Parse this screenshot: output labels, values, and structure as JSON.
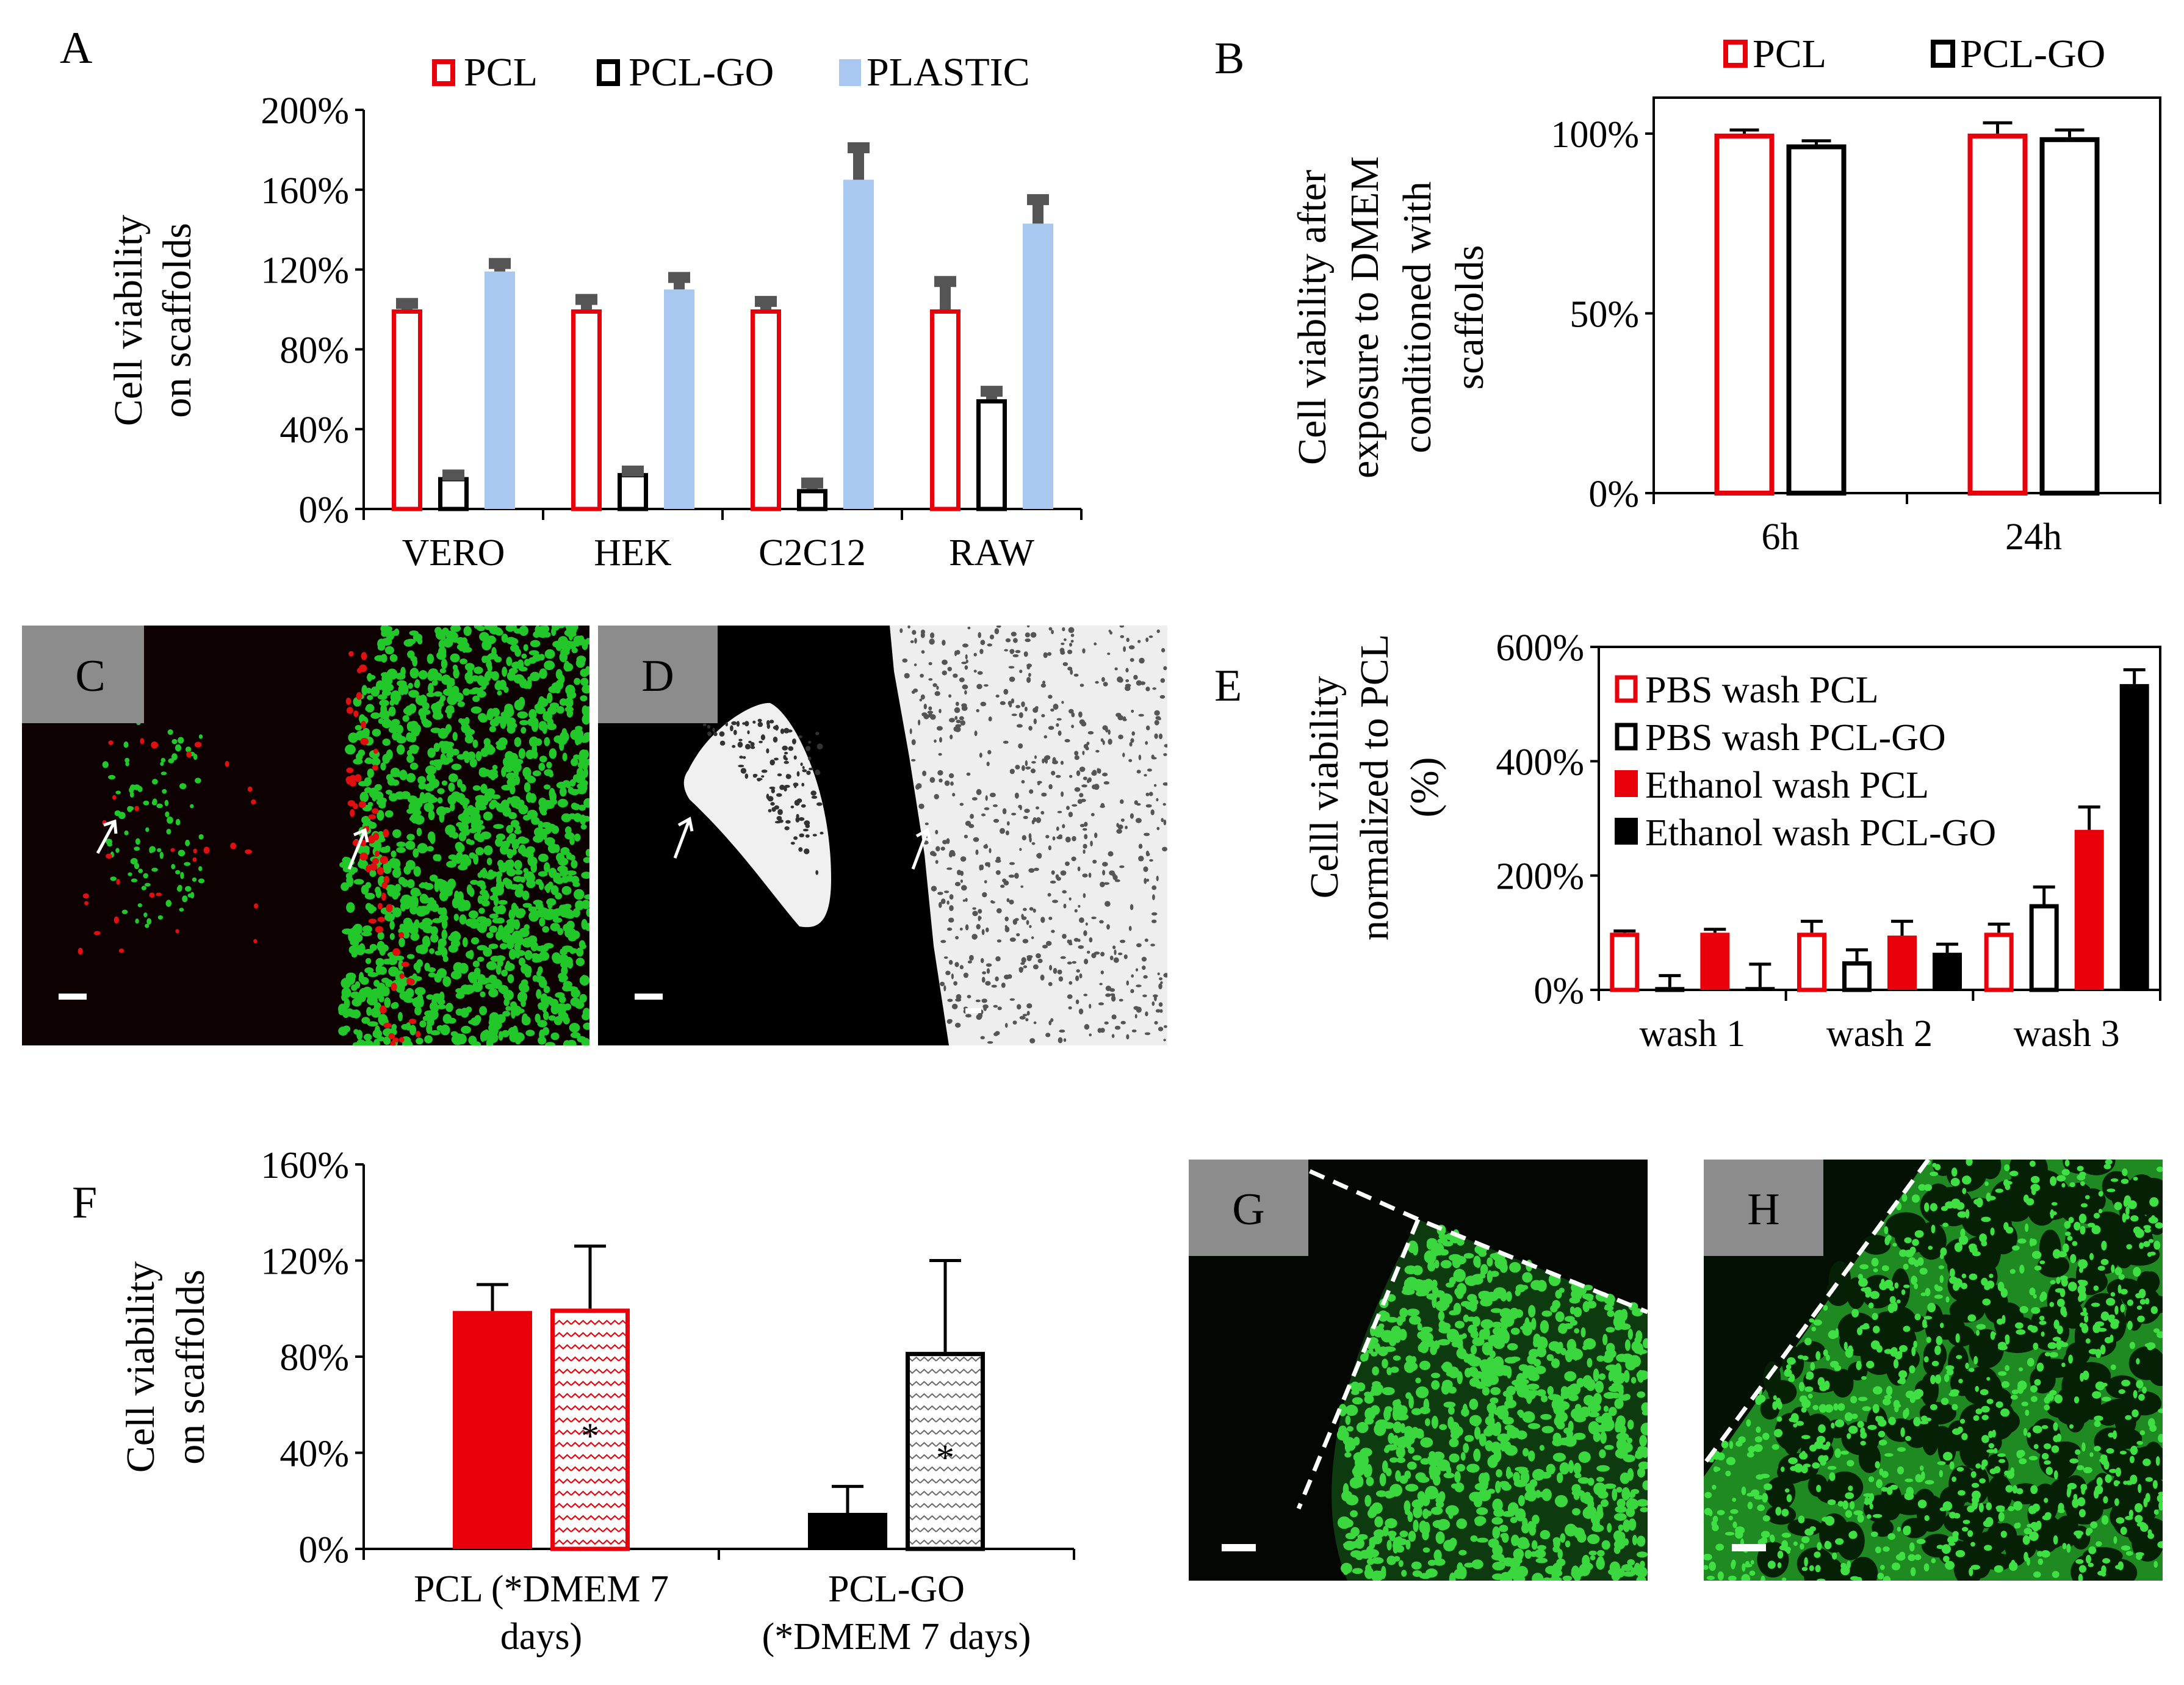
{
  "colors": {
    "pcl": "#e8000b",
    "pcl_go": "#000000",
    "plastic": "#a9c8ef",
    "error": "#555555",
    "micro_red": "#e01010",
    "micro_green": "#22c72a",
    "micro_gray": "#f2f2f2",
    "panel_label_bg": "#8c8c8c"
  },
  "panel_labels": {
    "A": "A",
    "B": "B",
    "C": "C",
    "D": "D",
    "E": "E",
    "F": "F",
    "G": "G",
    "H": "H"
  },
  "chart_data": [
    {
      "panel": "A",
      "type": "bar",
      "ylabel": [
        "Cell viability",
        "on scaffolds"
      ],
      "xlabel": "",
      "ylim": [
        0,
        200
      ],
      "yticks": [
        "0%",
        "40%",
        "80%",
        "120%",
        "160%",
        "200%"
      ],
      "categories": [
        "VERO",
        "HEK",
        "C2C12",
        "RAW"
      ],
      "legend": [
        "PCL",
        "PCL-GO",
        "PLASTIC"
      ],
      "legend_position": "top",
      "series": [
        {
          "name": "PCL",
          "style": "outline-red",
          "values": [
            100,
            100,
            100,
            100
          ],
          "errors": [
            3,
            5,
            4,
            14
          ]
        },
        {
          "name": "PCL-GO",
          "style": "outline-black",
          "values": [
            16,
            18,
            10,
            55
          ],
          "errors": [
            1,
            1,
            3,
            4
          ]
        },
        {
          "name": "PLASTIC",
          "style": "fill-blue",
          "values": [
            119,
            110,
            165,
            143
          ],
          "errors": [
            4,
            6,
            16,
            12
          ]
        }
      ]
    },
    {
      "panel": "B",
      "type": "bar",
      "ylabel": [
        "Cell viability after",
        "exposure to DMEM",
        "conditioned with",
        "scaffolds"
      ],
      "xlabel": "",
      "ylim": [
        0,
        110
      ],
      "yticks": [
        "0%",
        "50%",
        "100%"
      ],
      "categories": [
        "6h",
        "24h"
      ],
      "legend": [
        "PCL",
        "PCL-GO"
      ],
      "legend_position": "top",
      "series": [
        {
          "name": "PCL",
          "style": "outline-red",
          "values": [
            100,
            100
          ],
          "errors": [
            1,
            3
          ]
        },
        {
          "name": "PCL-GO",
          "style": "outline-black",
          "values": [
            97,
            99
          ],
          "errors": [
            1,
            2
          ]
        }
      ]
    },
    {
      "panel": "E",
      "type": "bar",
      "ylabel": [
        "Celll viability",
        "normalized to PCL",
        "(%)"
      ],
      "xlabel": "",
      "ylim": [
        0,
        600
      ],
      "yticks": [
        "0%",
        "200%",
        "400%",
        "600%"
      ],
      "categories": [
        "wash 1",
        "wash 2",
        "wash 3"
      ],
      "legend": [
        "PBS wash PCL",
        "PBS wash PCL-GO",
        "Ethanol wash PCL",
        "Ethanol wash PCL-GO"
      ],
      "legend_position": "top-left inside",
      "series": [
        {
          "name": "PBS wash PCL",
          "style": "outline-red",
          "values": [
            100,
            100,
            100
          ],
          "errors": [
            3,
            20,
            15
          ]
        },
        {
          "name": "PBS wash PCL-GO",
          "style": "outline-black",
          "values": [
            5,
            50,
            150
          ],
          "errors": [
            20,
            20,
            30
          ]
        },
        {
          "name": "Ethanol wash PCL",
          "style": "fill-red",
          "values": [
            100,
            95,
            280
          ],
          "errors": [
            6,
            25,
            40
          ]
        },
        {
          "name": "Ethanol wash PCL-GO",
          "style": "fill-black",
          "values": [
            5,
            65,
            535
          ],
          "errors": [
            40,
            15,
            25
          ]
        }
      ]
    },
    {
      "panel": "F",
      "type": "bar",
      "ylabel": [
        "Cell viability",
        "on scaffolds"
      ],
      "xlabel": "",
      "ylim": [
        0,
        160
      ],
      "yticks": [
        "0%",
        "40%",
        "80%",
        "120%",
        "160%"
      ],
      "categories": [
        [
          "PCL (*DMEM 7",
          "days)"
        ],
        [
          "PCL-GO",
          "(*DMEM 7 days)"
        ]
      ],
      "bar_marker": "*",
      "series": [
        {
          "style": "fill-category",
          "values": [
            99,
            15
          ],
          "errors": [
            11,
            11
          ],
          "colors": [
            "#e8000b",
            "#000000"
          ]
        },
        {
          "style": "wave-category",
          "values": [
            100,
            82
          ],
          "errors": [
            26,
            38
          ],
          "colors": [
            "#e8000b",
            "#000000"
          ],
          "marker": "*"
        }
      ]
    }
  ]
}
